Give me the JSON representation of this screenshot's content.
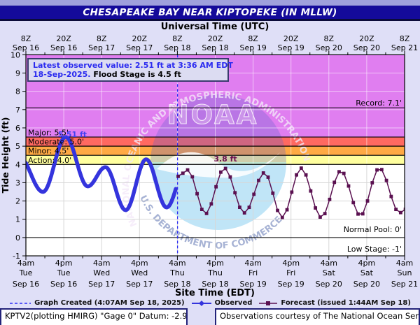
{
  "header": {
    "title": "CHESAPEAKE BAY NEAR KIPTOPEKE (IN MLLW)",
    "bar_color": "#140a9a",
    "strip_color": "#9fa0dc"
  },
  "axes": {
    "top_title": "Universal Time (UTC)",
    "bottom_title": "Site Time (EDT)",
    "y_label": "Tide Height (ft)",
    "y_ticks": [
      10,
      9,
      8,
      7,
      6,
      5,
      4,
      3,
      2,
      1,
      0,
      -1
    ],
    "top_ticks": [
      {
        "z": "8Z",
        "date": "Sep 16"
      },
      {
        "z": "20Z",
        "date": "Sep 16"
      },
      {
        "z": "8Z",
        "date": "Sep 17"
      },
      {
        "z": "20Z",
        "date": "Sep 17"
      },
      {
        "z": "8Z",
        "date": "Sep 18"
      },
      {
        "z": "20Z",
        "date": "Sep 18"
      },
      {
        "z": "8Z",
        "date": "Sep 19"
      },
      {
        "z": "20Z",
        "date": "Sep 19"
      },
      {
        "z": "8Z",
        "date": "Sep 20"
      },
      {
        "z": "20Z",
        "date": "Sep 20"
      },
      {
        "z": "8Z",
        "date": "Sep 21"
      }
    ],
    "bottom_ticks": [
      {
        "time": "4am",
        "day": "Tue",
        "date": "Sep 16"
      },
      {
        "time": "4pm",
        "day": "Tue",
        "date": "Sep 16"
      },
      {
        "time": "4am",
        "day": "Wed",
        "date": "Sep 17"
      },
      {
        "time": "4pm",
        "day": "Wed",
        "date": "Sep 17"
      },
      {
        "time": "4am",
        "day": "Thu",
        "date": "Sep 18"
      },
      {
        "time": "4pm",
        "day": "Thu",
        "date": "Sep 18"
      },
      {
        "time": "4am",
        "day": "Fri",
        "date": "Sep 19"
      },
      {
        "time": "4pm",
        "day": "Fri",
        "date": "Sep 19"
      },
      {
        "time": "4am",
        "day": "Sat",
        "date": "Sep 20"
      },
      {
        "time": "4pm",
        "day": "Sat",
        "date": "Sep 20"
      },
      {
        "time": "4am",
        "day": "Sun",
        "date": "Sep 21"
      }
    ]
  },
  "annotation_box": {
    "line1": "Latest observed value: 2.51 ft at 3:36 AM EDT",
    "line2_blue": "18-Sep-2025.",
    "line2_black": " Flood Stage is 4.5 ft",
    "text_blue": "#2a2af0",
    "bg": "#dcdcf2",
    "border": "#3a3a6e"
  },
  "flood_categories": [
    {
      "label": "Major: 5.5'",
      "level": 5.5,
      "band_top": 10,
      "color": "#e07ef0"
    },
    {
      "label": "Moderate: 5.0'",
      "level": 5.0,
      "band_top": 5.5,
      "color": "#ff6961"
    },
    {
      "label": "Minor: 4.5'",
      "level": 4.5,
      "band_top": 5.0,
      "color": "#ffaa44"
    },
    {
      "label": "Action: 4.0'",
      "level": 4.0,
      "band_top": 4.5,
      "color": "#ffff9e"
    }
  ],
  "reference_lines": [
    {
      "label": "Record: 7.1'",
      "value": 7.1
    },
    {
      "label": "Normal Pool: 0'",
      "value": 0
    },
    {
      "label": "Low Stage: -1'",
      "value": -1
    }
  ],
  "peak_annotations": [
    {
      "text": "5.51 ft",
      "color": "#4040f0",
      "t": 16.5,
      "v": 5.55
    },
    {
      "text": "3.8 ft",
      "color": "#6b0f50",
      "t": 63.5,
      "v": 4.15
    }
  ],
  "chart_data": {
    "type": "line",
    "title": "CHESAPEAKE BAY NEAR KIPTOPEKE (IN MLLW)",
    "x_unit": "hours since 4am EDT Tue Sep 16 2025",
    "xlim": [
      0,
      120
    ],
    "ylim": [
      -1,
      10
    ],
    "grid": "on",
    "now_line": {
      "t": 48.05,
      "color": "#2a2af5",
      "style": "dashed"
    },
    "series": [
      {
        "name": "Observed",
        "color": "#3434dd",
        "style": "thick solid line",
        "range": [
          0,
          47.6
        ],
        "extremes": [
          [
            -2.5,
            4.55
          ],
          [
            5.4,
            2.5
          ],
          [
            12.6,
            5.5
          ],
          [
            19.6,
            2.8
          ],
          [
            25.2,
            3.85
          ],
          [
            31.6,
            1.5
          ],
          [
            38.1,
            4.28
          ],
          [
            44.6,
            1.65
          ],
          [
            50.8,
            3.9
          ]
        ],
        "latest_value_ft": 2.51,
        "max_value_ft": 5.51
      },
      {
        "name": "Forecast",
        "color": "#5a1050",
        "style": "thin line with square markers",
        "range": [
          48.25,
          120.3
        ],
        "marker_step_hours": 1.5,
        "extremes": [
          [
            48.25,
            3.35
          ],
          [
            51.3,
            3.7
          ],
          [
            56.9,
            1.3
          ],
          [
            62.9,
            3.8
          ],
          [
            69.2,
            1.35
          ],
          [
            75.6,
            3.55
          ],
          [
            81.2,
            1.1
          ],
          [
            87.2,
            3.8
          ],
          [
            93.6,
            1.1
          ],
          [
            99.8,
            3.65
          ],
          [
            106.0,
            1.2
          ],
          [
            112.0,
            3.8
          ],
          [
            118.4,
            1.35
          ],
          [
            120.3,
            1.55
          ]
        ],
        "max_value_ft": 3.8
      }
    ]
  },
  "legend": {
    "items": [
      {
        "sample": "dashed-line",
        "label": "Graph Created (4:07AM Sep 18, 2025)"
      },
      {
        "sample": "observed-line-diamond",
        "label": "Observed"
      },
      {
        "sample": "forecast-line-square",
        "label": "Forecast (issued 1:44AM Sep 18)"
      }
    ]
  },
  "footer": {
    "left_box": "KPTV2(plotting HMIRG) \"Gage 0\" Datum: -2.95'",
    "right_box": "Observations courtesy of The National Ocean Service"
  },
  "watermark": {
    "ring_text_top": "NATIONAL OCEANIC AND ATMOSPHERIC ADMINISTRATION",
    "ring_text_bottom": "U.S. DEPARTMENT OF COMMERCE",
    "center_text": "NOAA"
  }
}
